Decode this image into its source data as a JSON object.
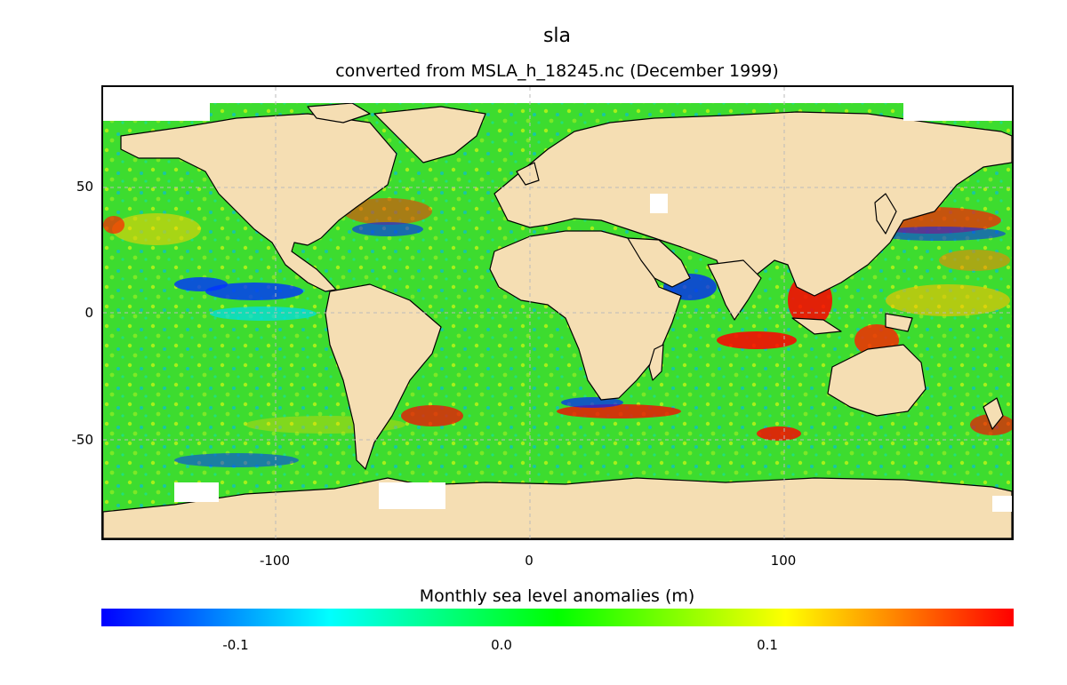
{
  "map": {
    "title": "sla",
    "subtitle": "converted from MSLA_h_18245.nc (December 1999)",
    "x_ticks": [
      "-100",
      "0",
      "100"
    ],
    "y_ticks": [
      "50",
      "0",
      "-50"
    ],
    "land_color": "#f5deb3",
    "ocean_base_color": "#33dd33",
    "grid": true
  },
  "colorbar": {
    "title": "Monthly sea level anomalies (m)",
    "tick_labels": [
      "-0.1",
      "0.0",
      "0.1"
    ],
    "colors": [
      "#0000ff",
      "#00ffff",
      "#00ff00",
      "#ffff00",
      "#ff0000"
    ]
  }
}
